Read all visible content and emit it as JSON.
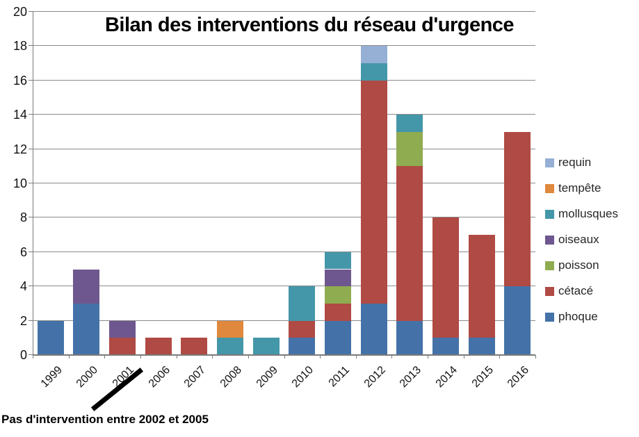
{
  "title": "Bilan des interventions du réseau d'urgence",
  "footnote": "Pas d'intervention entre 2002 et 2005",
  "chart_data": {
    "type": "bar",
    "stacked": true,
    "title": "Bilan des interventions du réseau d'urgence",
    "categories": [
      "1999",
      "2000",
      "2001",
      "2006",
      "2007",
      "2008",
      "2009",
      "2010",
      "2011",
      "2012",
      "2013",
      "2014",
      "2015",
      "2016"
    ],
    "series": [
      {
        "name": "phoque",
        "color": "#4472A8",
        "values": [
          2,
          3,
          0,
          0,
          0,
          0,
          0,
          1,
          2,
          3,
          2,
          1,
          1,
          4
        ]
      },
      {
        "name": "cétacé",
        "color": "#B04A44",
        "values": [
          0,
          0,
          1,
          1,
          1,
          0,
          0,
          1,
          1,
          13,
          9,
          7,
          6,
          9
        ]
      },
      {
        "name": "poisson",
        "color": "#8FAC50",
        "values": [
          0,
          0,
          0,
          0,
          0,
          0,
          0,
          0,
          1,
          0,
          2,
          0,
          0,
          0
        ]
      },
      {
        "name": "oiseaux",
        "color": "#6E578E",
        "values": [
          0,
          2,
          1,
          0,
          0,
          0,
          0,
          0,
          1,
          0,
          0,
          0,
          0,
          0
        ]
      },
      {
        "name": "mollusques",
        "color": "#4497A9",
        "values": [
          0,
          0,
          0,
          0,
          0,
          1,
          1,
          2,
          1,
          1,
          1,
          0,
          0,
          0
        ]
      },
      {
        "name": "tempête",
        "color": "#E0883D",
        "values": [
          0,
          0,
          0,
          0,
          0,
          1,
          0,
          0,
          0,
          0,
          0,
          0,
          0,
          0
        ]
      },
      {
        "name": "requin",
        "color": "#95AFD5",
        "values": [
          0,
          0,
          0,
          0,
          0,
          0,
          0,
          0,
          0,
          1,
          0,
          0,
          0,
          0
        ]
      }
    ],
    "legend": {
      "position": "right",
      "order_top_to_bottom": [
        "requin",
        "tempête",
        "mollusques",
        "oiseaux",
        "poisson",
        "cétacé",
        "phoque"
      ]
    },
    "ylim": [
      0,
      20
    ],
    "ytick_step": 2,
    "grid": true,
    "xlabel": "",
    "ylabel": "",
    "annotation": {
      "axis_break_between": [
        "2001",
        "2006"
      ],
      "note": "Pas d'intervention entre 2002 et 2005"
    }
  }
}
